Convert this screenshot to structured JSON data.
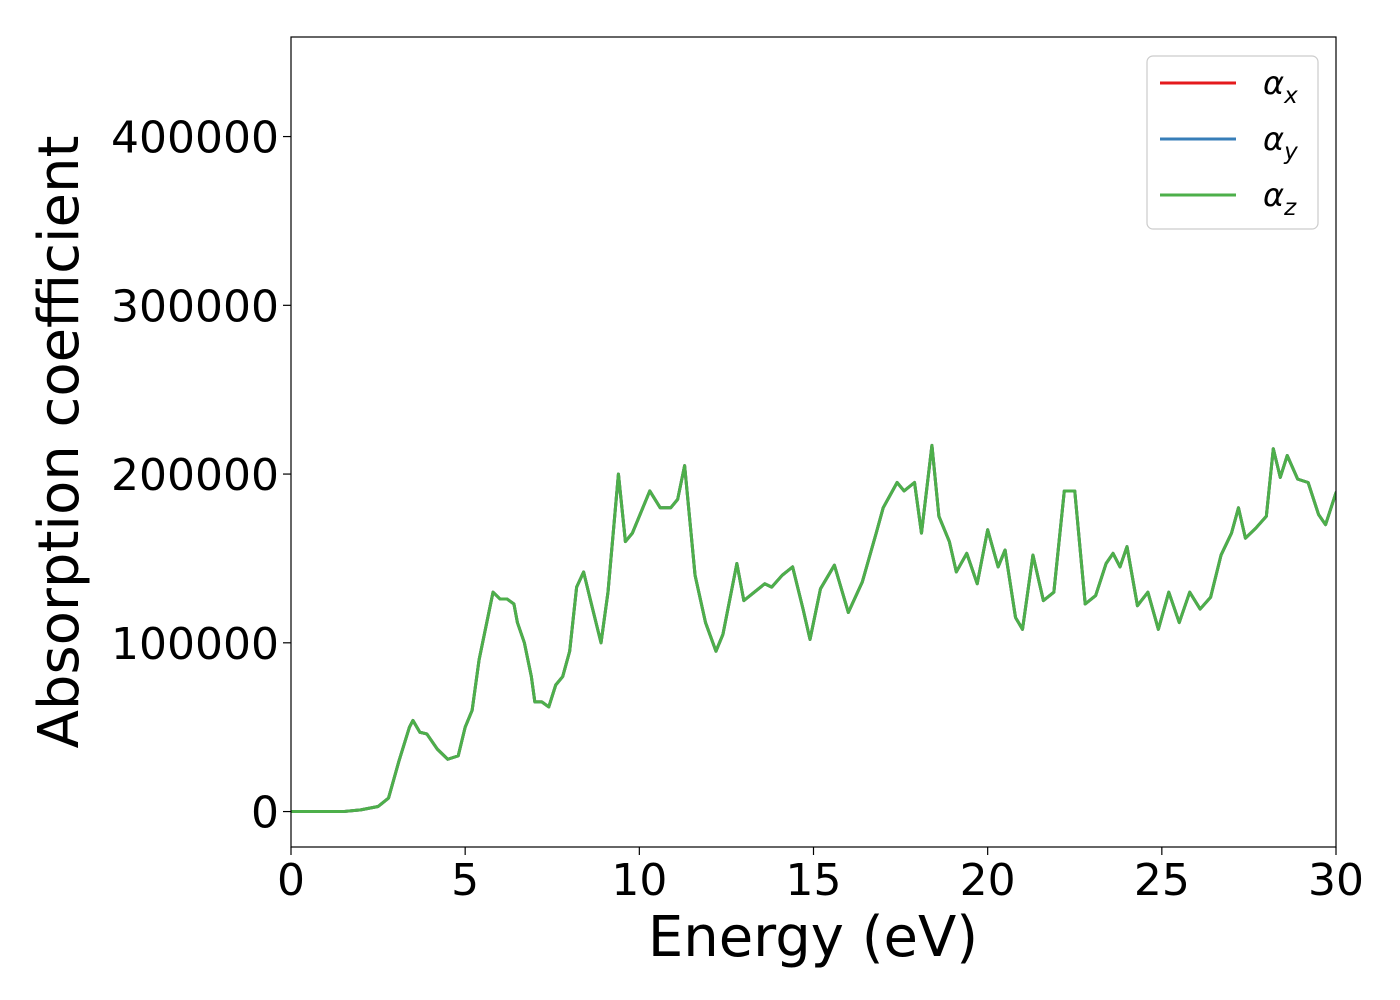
{
  "chart_data": {
    "type": "line",
    "xlabel": "Energy (eV)",
    "ylabel": "Absorption coefficient",
    "xlim": [
      0,
      30
    ],
    "ylim": [
      -21000,
      459000
    ],
    "xticks": [
      0,
      5,
      10,
      15,
      20,
      25,
      30
    ],
    "yticks": [
      0,
      100000,
      200000,
      300000,
      400000
    ],
    "xtick_labels": [
      "0",
      "5",
      "10",
      "15",
      "20",
      "25",
      "30"
    ],
    "ytick_labels": [
      "0",
      "100000",
      "200000",
      "300000",
      "400000"
    ],
    "grid": false,
    "legend_position": "top-right",
    "series": [
      {
        "name": "α",
        "subscript": "x",
        "color": "#e41a1c",
        "x": [
          0,
          0.5,
          1,
          1.5,
          2,
          2.5,
          2.8,
          3.1,
          3.4,
          3.5,
          3.7,
          3.9,
          4.2,
          4.5,
          4.8,
          5.0,
          5.2,
          5.4,
          5.6,
          5.8,
          6.0,
          6.2,
          6.4,
          6.5,
          6.7,
          6.9,
          7.0,
          7.2,
          7.4,
          7.6,
          7.8,
          8.0,
          8.2,
          8.4,
          8.6,
          8.9,
          9.1,
          9.4,
          9.6,
          9.8,
          10.0,
          10.3,
          10.6,
          10.9,
          11.1,
          11.3,
          11.6,
          11.9,
          12.2,
          12.4,
          12.8,
          13.0,
          13.3,
          13.6,
          13.8,
          14.1,
          14.4,
          14.7,
          14.9,
          15.2,
          15.6,
          16.0,
          16.4,
          16.8,
          17.0,
          17.4,
          17.6,
          17.9,
          18.1,
          18.4,
          18.6,
          18.9,
          19.1,
          19.4,
          19.7,
          20.0,
          20.3,
          20.5,
          20.8,
          21.0,
          21.3,
          21.6,
          21.9,
          22.2,
          22.5,
          22.8,
          23.1,
          23.4,
          23.6,
          23.8,
          24.0,
          24.3,
          24.6,
          24.9,
          25.2,
          25.5,
          25.8,
          26.1,
          26.4,
          26.7,
          27.0,
          27.2,
          27.4,
          27.7,
          28.0,
          28.2,
          28.4,
          28.6,
          28.9,
          29.2,
          29.5,
          29.7,
          30.0
        ],
        "y": [
          0,
          0,
          0,
          0,
          1000,
          3000,
          8000,
          30000,
          50000,
          54000,
          47000,
          46000,
          37000,
          31000,
          33000,
          50000,
          60000,
          90000,
          110000,
          130000,
          126000,
          126000,
          123000,
          112000,
          100000,
          80000,
          65000,
          65000,
          62000,
          75000,
          80000,
          95000,
          133000,
          142000,
          125000,
          100000,
          130000,
          200000,
          160000,
          165000,
          175000,
          190000,
          180000,
          180000,
          185000,
          205000,
          140000,
          112000,
          95000,
          105000,
          147000,
          125000,
          130000,
          135000,
          133000,
          140000,
          145000,
          120000,
          102000,
          132000,
          146000,
          118000,
          136000,
          165000,
          180000,
          195000,
          190000,
          195000,
          165000,
          217000,
          175000,
          160000,
          142000,
          153000,
          135000,
          167000,
          145000,
          155000,
          115000,
          108000,
          152000,
          125000,
          130000,
          190000,
          190000,
          123000,
          128000,
          147000,
          153000,
          145000,
          157000,
          122000,
          130000,
          108000,
          130000,
          112000,
          130000,
          120000,
          127000,
          152000,
          165000,
          180000,
          162000,
          168000,
          175000,
          215000,
          198000,
          211000,
          197000,
          195000,
          176000,
          170000,
          189000
        ]
      },
      {
        "name": "α",
        "subscript": "y",
        "color": "#377eb8",
        "x": [
          0,
          0.5,
          1,
          1.5,
          2,
          2.5,
          2.8,
          3.1,
          3.4,
          3.5,
          3.7,
          3.9,
          4.2,
          4.5,
          4.8,
          5.0,
          5.2,
          5.4,
          5.6,
          5.8,
          6.0,
          6.2,
          6.4,
          6.5,
          6.7,
          6.9,
          7.0,
          7.2,
          7.4,
          7.6,
          7.8,
          8.0,
          8.2,
          8.4,
          8.6,
          8.9,
          9.1,
          9.4,
          9.6,
          9.8,
          10.0,
          10.3,
          10.6,
          10.9,
          11.1,
          11.3,
          11.6,
          11.9,
          12.2,
          12.4,
          12.8,
          13.0,
          13.3,
          13.6,
          13.8,
          14.1,
          14.4,
          14.7,
          14.9,
          15.2,
          15.6,
          16.0,
          16.4,
          16.8,
          17.0,
          17.4,
          17.6,
          17.9,
          18.1,
          18.4,
          18.6,
          18.9,
          19.1,
          19.4,
          19.7,
          20.0,
          20.3,
          20.5,
          20.8,
          21.0,
          21.3,
          21.6,
          21.9,
          22.2,
          22.5,
          22.8,
          23.1,
          23.4,
          23.6,
          23.8,
          24.0,
          24.3,
          24.6,
          24.9,
          25.2,
          25.5,
          25.8,
          26.1,
          26.4,
          26.7,
          27.0,
          27.2,
          27.4,
          27.7,
          28.0,
          28.2,
          28.4,
          28.6,
          28.9,
          29.2,
          29.5,
          29.7,
          30.0
        ],
        "y": [
          0,
          0,
          0,
          0,
          1000,
          3000,
          8000,
          30000,
          50000,
          54000,
          47000,
          46000,
          37000,
          31000,
          33000,
          50000,
          60000,
          90000,
          110000,
          130000,
          126000,
          126000,
          123000,
          112000,
          100000,
          80000,
          65000,
          65000,
          62000,
          75000,
          80000,
          95000,
          133000,
          142000,
          125000,
          100000,
          130000,
          200000,
          160000,
          165000,
          175000,
          190000,
          180000,
          180000,
          185000,
          205000,
          140000,
          112000,
          95000,
          105000,
          147000,
          125000,
          130000,
          135000,
          133000,
          140000,
          145000,
          120000,
          102000,
          132000,
          146000,
          118000,
          136000,
          165000,
          180000,
          195000,
          190000,
          195000,
          165000,
          217000,
          175000,
          160000,
          142000,
          153000,
          135000,
          167000,
          145000,
          155000,
          115000,
          108000,
          152000,
          125000,
          130000,
          190000,
          190000,
          123000,
          128000,
          147000,
          153000,
          145000,
          157000,
          122000,
          130000,
          108000,
          130000,
          112000,
          130000,
          120000,
          127000,
          152000,
          165000,
          180000,
          162000,
          168000,
          175000,
          215000,
          198000,
          211000,
          197000,
          195000,
          176000,
          170000,
          189000
        ]
      },
      {
        "name": "α",
        "subscript": "z",
        "color": "#4daf4a",
        "x": [
          0,
          0.5,
          1,
          1.5,
          2,
          2.5,
          2.8,
          3.1,
          3.4,
          3.5,
          3.7,
          3.9,
          4.2,
          4.5,
          4.8,
          5.0,
          5.2,
          5.4,
          5.6,
          5.8,
          6.0,
          6.2,
          6.4,
          6.5,
          6.7,
          6.9,
          7.0,
          7.2,
          7.4,
          7.6,
          7.8,
          8.0,
          8.2,
          8.4,
          8.6,
          8.9,
          9.1,
          9.4,
          9.6,
          9.8,
          10.0,
          10.3,
          10.6,
          10.9,
          11.1,
          11.3,
          11.6,
          11.9,
          12.2,
          12.4,
          12.8,
          13.0,
          13.3,
          13.6,
          13.8,
          14.1,
          14.4,
          14.7,
          14.9,
          15.2,
          15.6,
          16.0,
          16.4,
          16.8,
          17.0,
          17.4,
          17.6,
          17.9,
          18.1,
          18.4,
          18.6,
          18.9,
          19.1,
          19.4,
          19.7,
          20.0,
          20.3,
          20.5,
          20.8,
          21.0,
          21.3,
          21.6,
          21.9,
          22.2,
          22.5,
          22.8,
          23.1,
          23.4,
          23.6,
          23.8,
          24.0,
          24.3,
          24.6,
          24.9,
          25.2,
          25.5,
          25.8,
          26.1,
          26.4,
          26.7,
          27.0,
          27.2,
          27.4,
          27.7,
          28.0,
          28.2,
          28.4,
          28.6,
          28.9,
          29.2,
          29.5,
          29.7,
          30.0
        ],
        "y": [
          0,
          0,
          0,
          0,
          1000,
          3000,
          8000,
          30000,
          50000,
          54000,
          47000,
          46000,
          37000,
          31000,
          33000,
          50000,
          60000,
          90000,
          110000,
          130000,
          126000,
          126000,
          123000,
          112000,
          100000,
          80000,
          65000,
          65000,
          62000,
          75000,
          80000,
          95000,
          133000,
          142000,
          125000,
          100000,
          130000,
          200000,
          160000,
          165000,
          175000,
          190000,
          180000,
          180000,
          185000,
          205000,
          140000,
          112000,
          95000,
          105000,
          147000,
          125000,
          130000,
          135000,
          133000,
          140000,
          145000,
          120000,
          102000,
          132000,
          146000,
          118000,
          136000,
          165000,
          180000,
          195000,
          190000,
          195000,
          165000,
          217000,
          175000,
          160000,
          142000,
          153000,
          135000,
          167000,
          145000,
          155000,
          115000,
          108000,
          152000,
          125000,
          130000,
          190000,
          190000,
          123000,
          128000,
          147000,
          153000,
          145000,
          157000,
          122000,
          130000,
          108000,
          130000,
          112000,
          130000,
          120000,
          127000,
          152000,
          165000,
          180000,
          162000,
          168000,
          175000,
          215000,
          198000,
          211000,
          197000,
          195000,
          176000,
          170000,
          189000
        ]
      }
    ]
  }
}
